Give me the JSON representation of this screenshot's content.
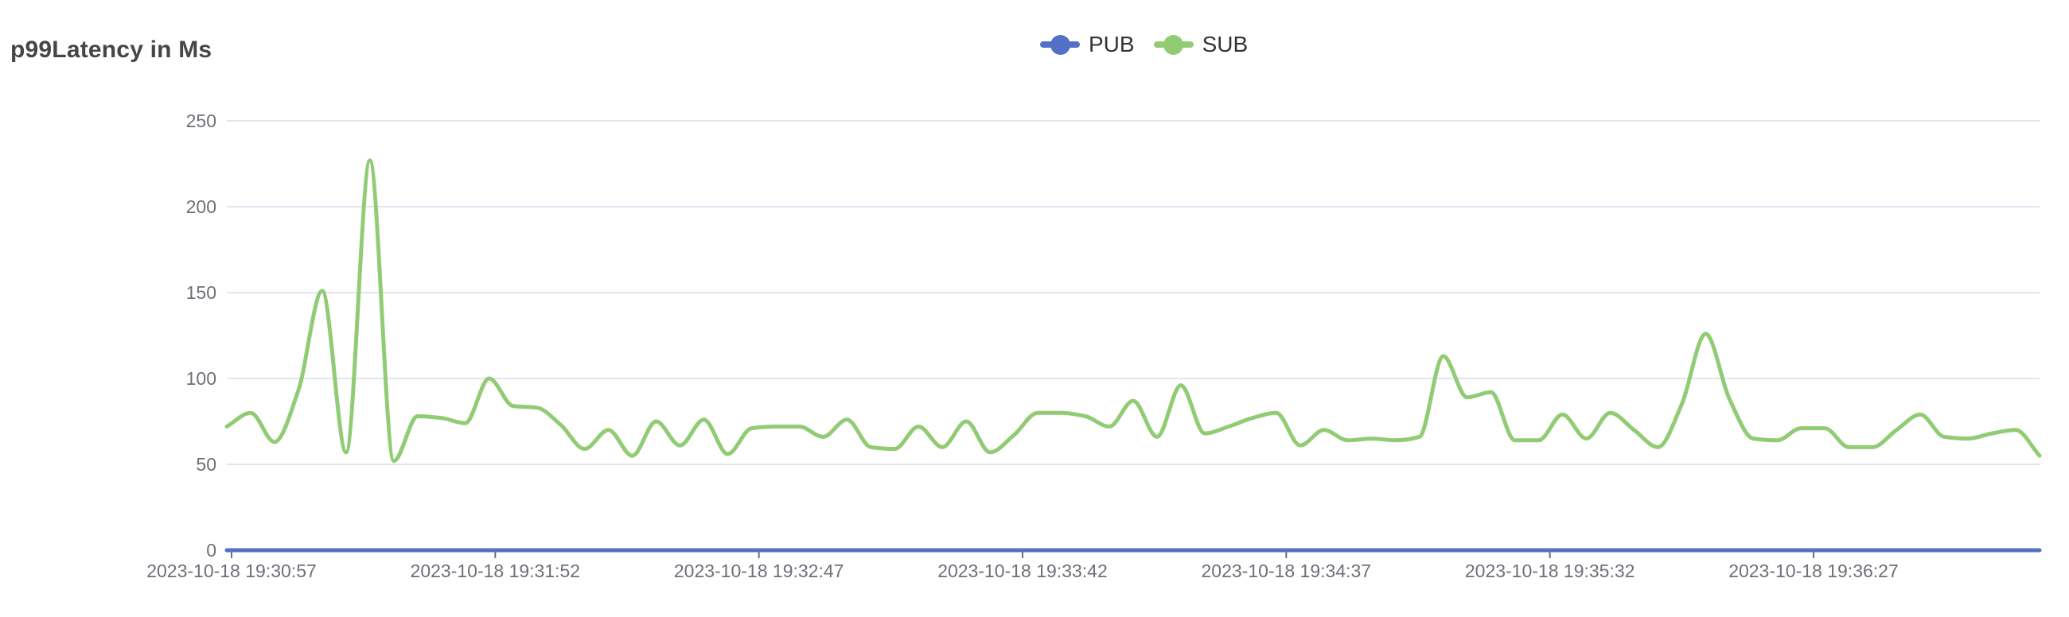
{
  "title": "p99Latency in Ms",
  "legend": {
    "items": [
      {
        "label": "PUB",
        "color": "#5470c6"
      },
      {
        "label": "SUB",
        "color": "#91cc75"
      }
    ]
  },
  "chart_data": {
    "type": "line",
    "smooth": true,
    "title": "p99Latency in Ms",
    "xlabel": "",
    "ylabel": "",
    "ylim": [
      0,
      250
    ],
    "y_ticks": [
      0,
      50,
      100,
      150,
      200,
      250
    ],
    "grid": true,
    "legend_position": "top-center",
    "axis_label_color": "#6e7079",
    "gridline_color": "#e0e6f1",
    "x_tick_labels": [
      "2023-10-18 19:30:57",
      "2023-10-18 19:31:52",
      "2023-10-18 19:32:47",
      "2023-10-18 19:33:42",
      "2023-10-18 19:34:37",
      "2023-10-18 19:35:32",
      "2023-10-18 19:36:27"
    ],
    "series": [
      {
        "name": "PUB",
        "color": "#5470c6",
        "values": [
          0,
          0,
          0,
          0,
          0,
          0,
          0,
          0,
          0,
          0,
          0,
          0,
          0,
          0,
          0,
          0,
          0,
          0,
          0,
          0,
          0,
          0,
          0,
          0,
          0,
          0,
          0,
          0,
          0,
          0,
          0,
          0,
          0,
          0,
          0,
          0,
          0,
          0,
          0,
          0,
          0,
          0,
          0,
          0,
          0,
          0,
          0,
          0,
          0,
          0,
          0,
          0,
          0,
          0,
          0,
          0,
          0,
          0,
          0,
          0,
          0,
          0,
          0,
          0,
          0,
          0,
          0,
          0,
          0,
          0,
          0,
          0,
          0,
          0,
          0,
          0,
          0
        ]
      },
      {
        "name": "SUB",
        "color": "#91cc75",
        "values": [
          72,
          80,
          63,
          93,
          151,
          57,
          227,
          52,
          78,
          77,
          74,
          100,
          84,
          83,
          73,
          59,
          70,
          55,
          75,
          61,
          76,
          56,
          71,
          72,
          72,
          66,
          76,
          60,
          59,
          72,
          60,
          75,
          57,
          67,
          80,
          80,
          78,
          72,
          87,
          66,
          96,
          68,
          72,
          77,
          80,
          61,
          70,
          64,
          65,
          64,
          66,
          113,
          89,
          92,
          64,
          64,
          79,
          65,
          80,
          70,
          60,
          85,
          126,
          88,
          65,
          64,
          71,
          71,
          60,
          60,
          70,
          79,
          66,
          65,
          68,
          70,
          55
        ]
      }
    ]
  }
}
